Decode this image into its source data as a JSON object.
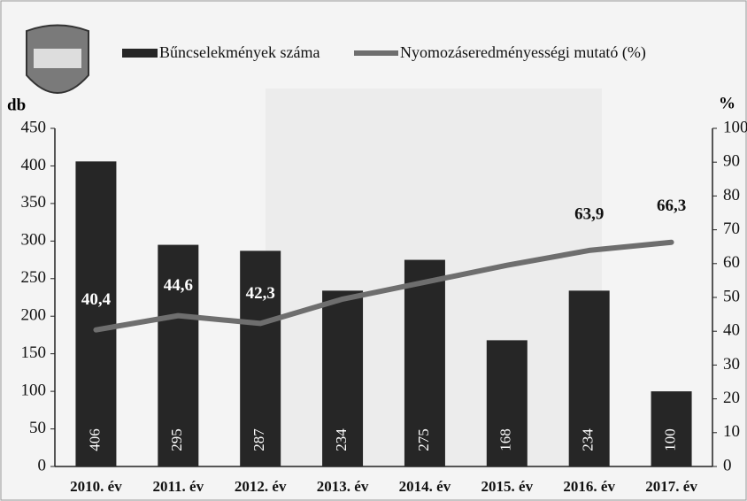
{
  "chart_data": {
    "type": "bar-line",
    "categories": [
      "2010. év",
      "2011. év",
      "2012. év",
      "2013. év",
      "2014. év",
      "2015. év",
      "2016. év",
      "2017. év"
    ],
    "series": [
      {
        "name": "Bűncselekmények száma",
        "type": "bar",
        "color": "#262626",
        "values": [
          406,
          295,
          287,
          234,
          275,
          168,
          234,
          100
        ]
      },
      {
        "name": "Nyomozáseredményességi mutató (%)",
        "type": "line",
        "axis": "y2",
        "color": "#6e6e6e",
        "values": [
          40.4,
          44.6,
          42.3,
          49.5,
          54.5,
          59.5,
          63.9,
          66.3
        ],
        "value_labels": [
          "40,4",
          "44,6",
          "42,3",
          null,
          null,
          null,
          "63,9",
          "66,3"
        ]
      }
    ],
    "ylabel": "db",
    "y2label": "%",
    "ylim": [
      0,
      450
    ],
    "yticks": [
      0,
      50,
      100,
      150,
      200,
      250,
      300,
      350,
      400,
      450
    ],
    "y2lim": [
      0,
      100
    ],
    "y2ticks": [
      0,
      10,
      20,
      30,
      40,
      50,
      60,
      70,
      80,
      90,
      100
    ]
  }
}
